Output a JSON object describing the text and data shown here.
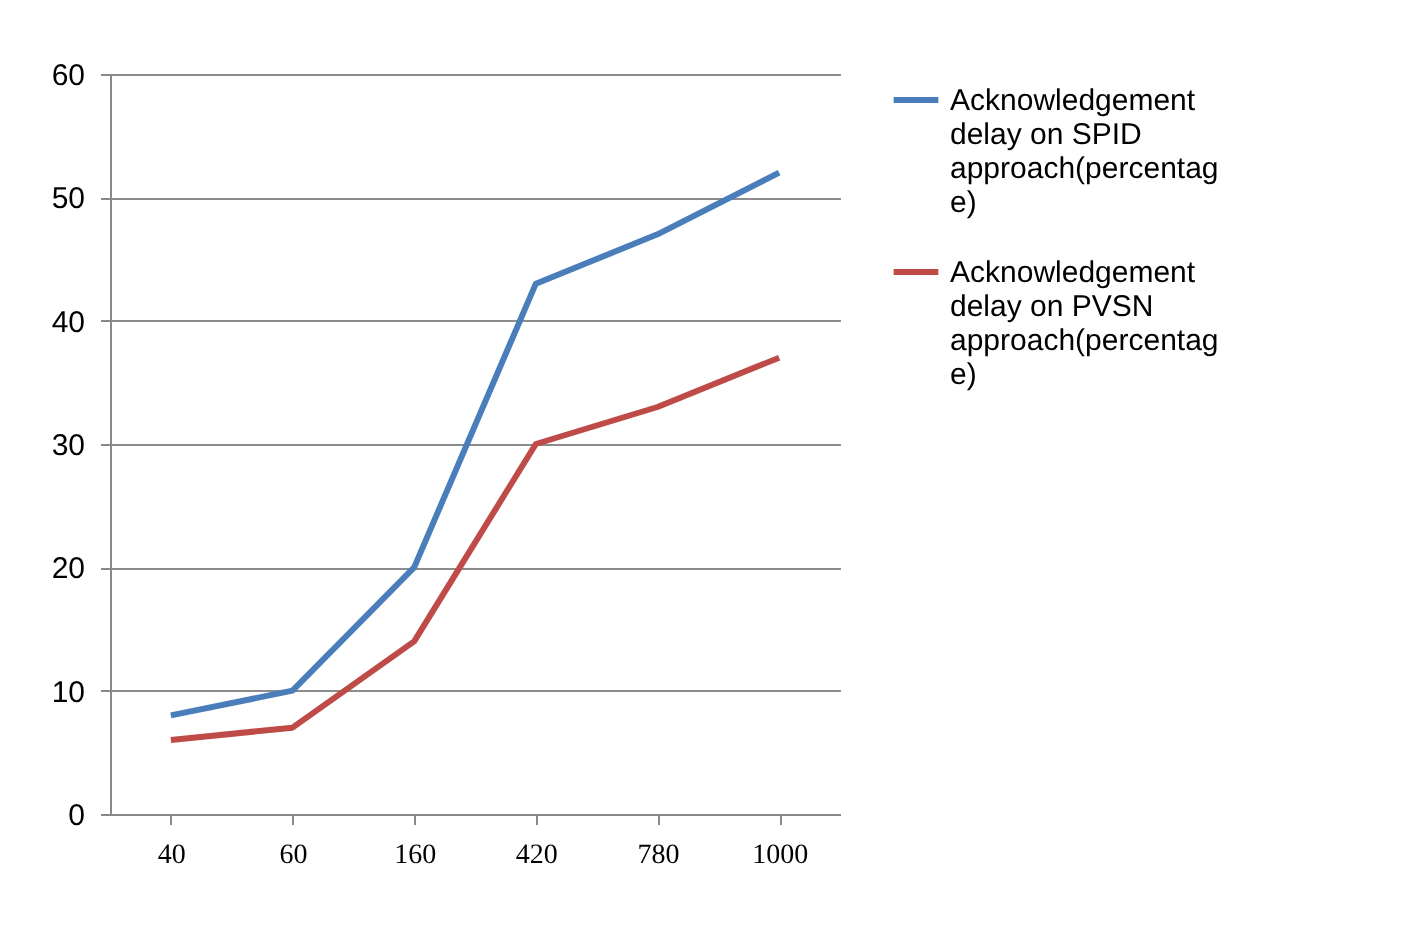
{
  "chart_data": {
    "type": "line",
    "categories": [
      "40",
      "60",
      "160",
      "420",
      "780",
      "1000"
    ],
    "series": [
      {
        "name": "Acknowledgement delay on SPID approach(percentage)",
        "color": "#4a7ebb",
        "values": [
          8,
          10,
          20,
          43,
          47,
          52
        ]
      },
      {
        "name": "Acknowledgement delay on PVSN approach(percentage)",
        "color": "#be4b48",
        "values": [
          6,
          7,
          14,
          30,
          33,
          37
        ]
      }
    ],
    "ylim": [
      0,
      60
    ],
    "yticks": [
      0,
      10,
      20,
      30,
      40,
      50,
      60
    ],
    "grid": "y",
    "legend": "right",
    "marker": "none",
    "line_style": "solid"
  }
}
